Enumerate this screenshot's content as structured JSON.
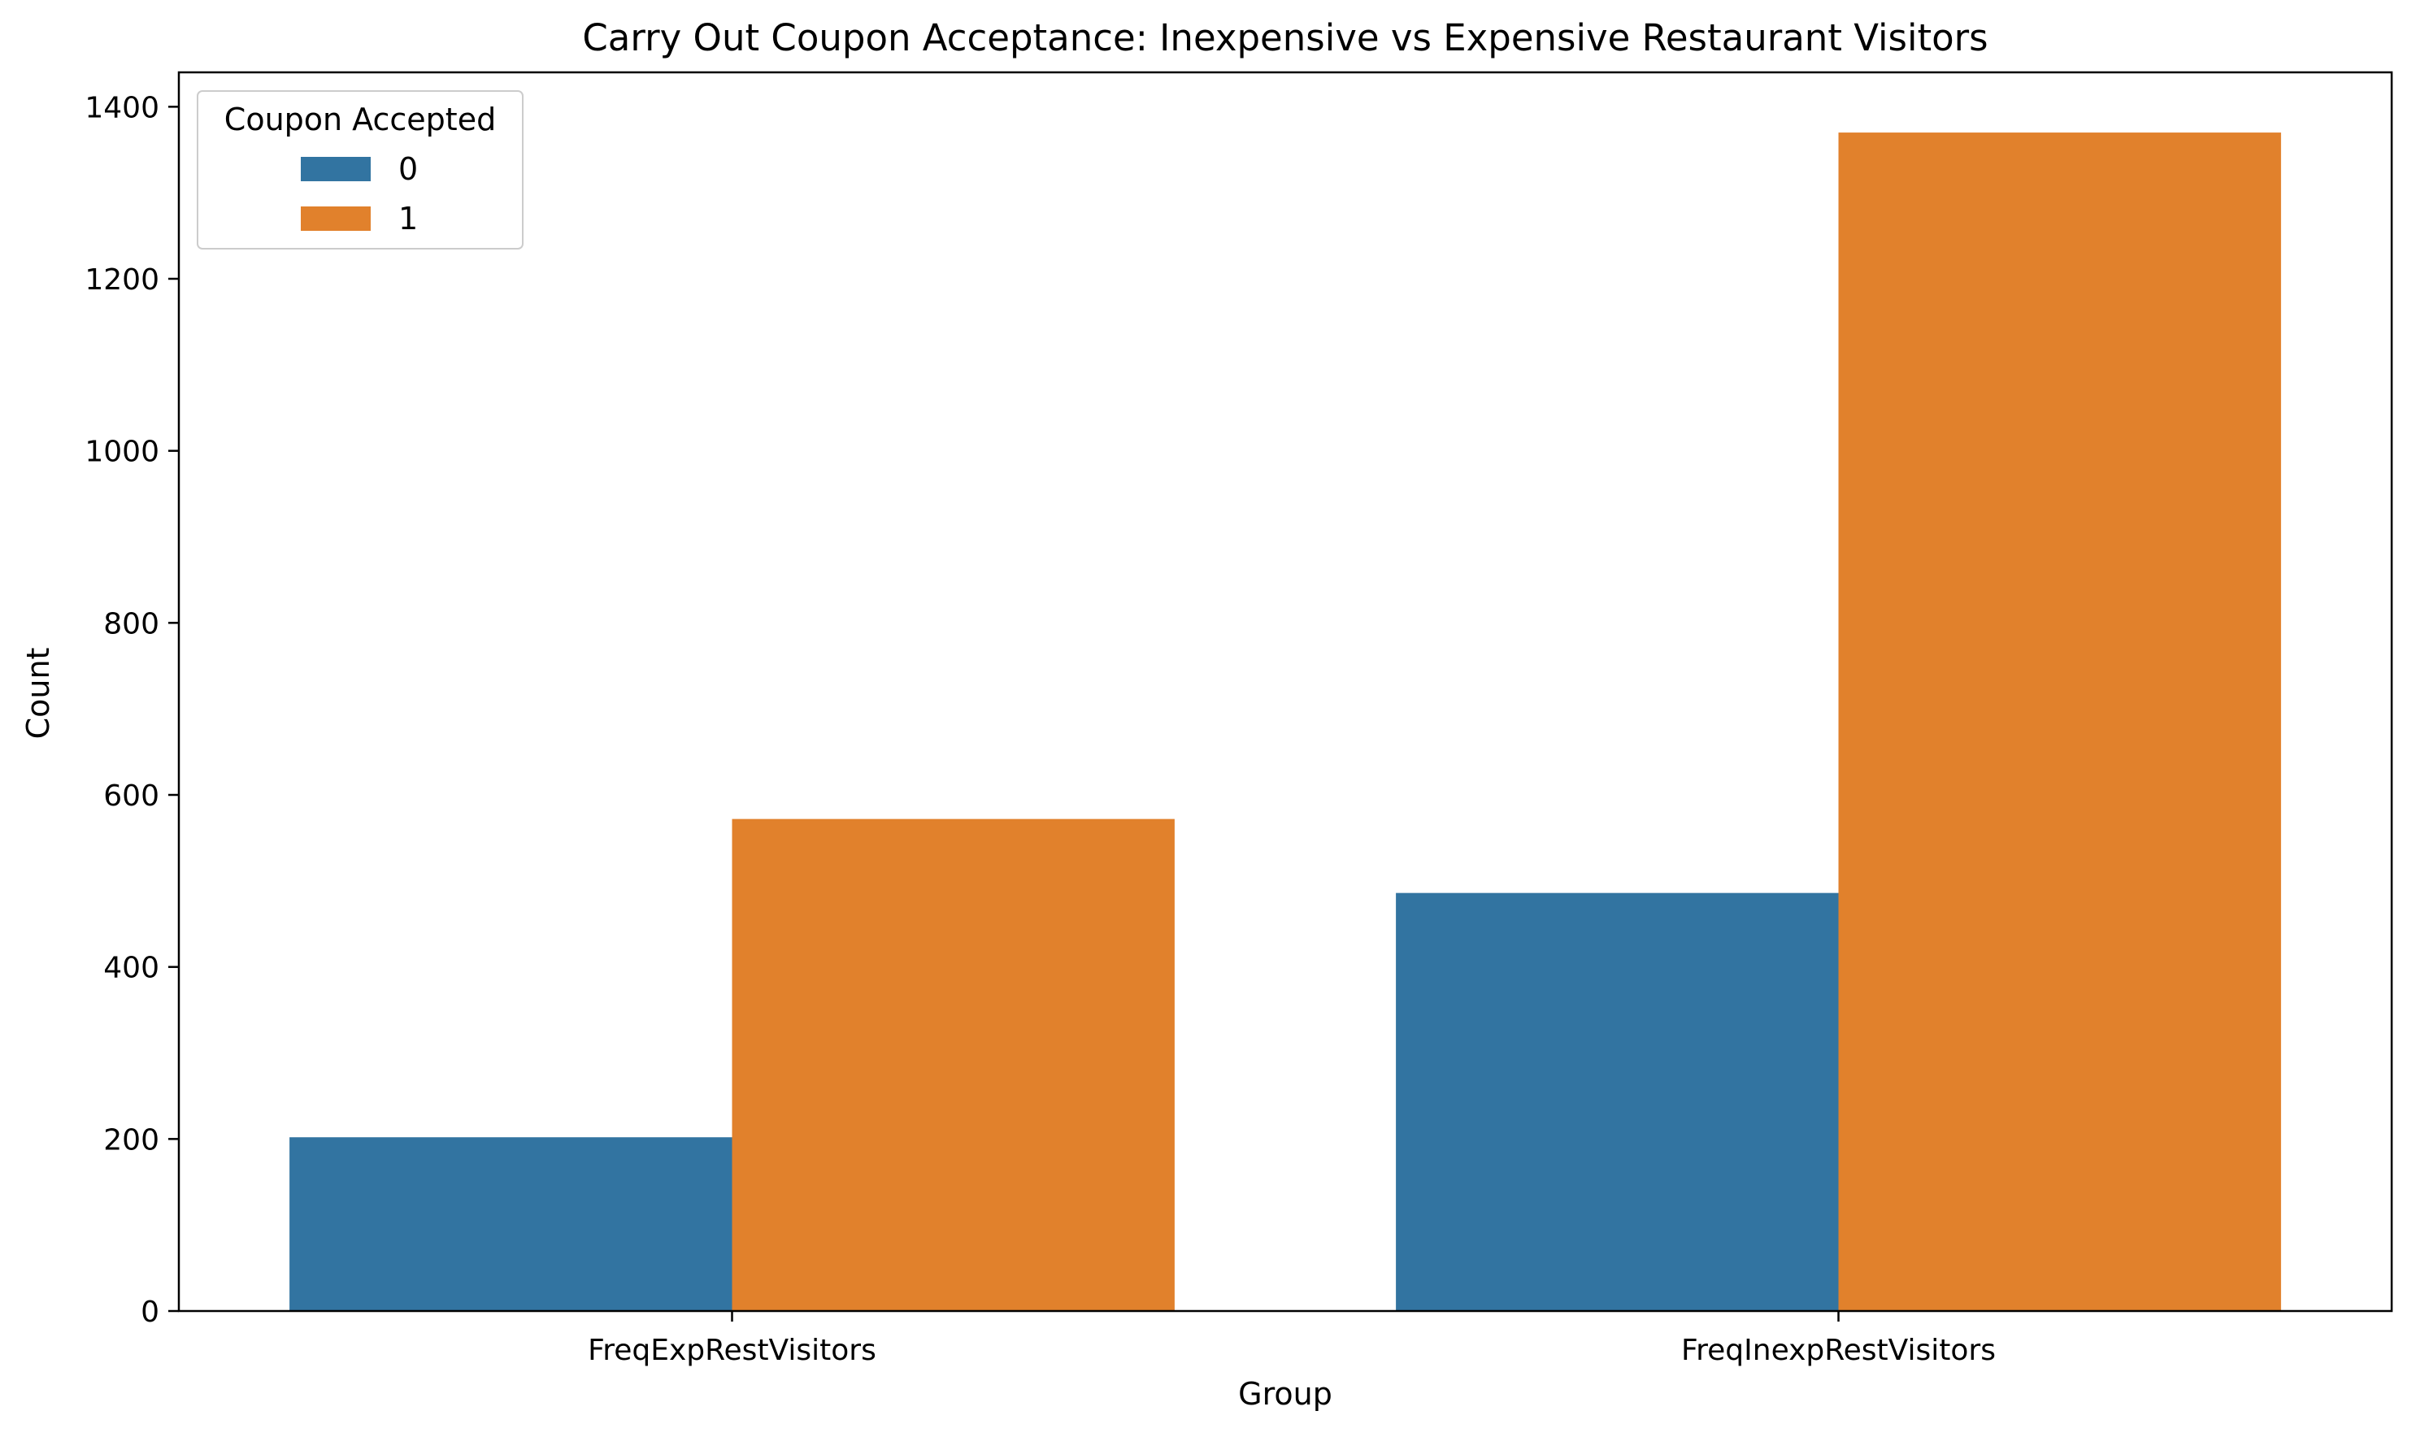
{
  "chart_data": {
    "type": "bar",
    "title": "Carry Out Coupon Acceptance: Inexpensive vs Expensive Restaurant Visitors",
    "xlabel": "Group",
    "ylabel": "Count",
    "categories": [
      "FreqExpRestVisitors",
      "FreqInexpRestVisitors"
    ],
    "series": [
      {
        "name": "0",
        "values": [
          202,
          486
        ],
        "color": "#3274a1"
      },
      {
        "name": "1",
        "values": [
          572,
          1370
        ],
        "color": "#e1812c"
      }
    ],
    "ylim": [
      0,
      1440
    ],
    "yticks": [
      0,
      200,
      400,
      600,
      800,
      1000,
      1200,
      1400
    ],
    "grid": false,
    "legend": {
      "title": "Coupon Accepted",
      "position": "top-left"
    }
  }
}
